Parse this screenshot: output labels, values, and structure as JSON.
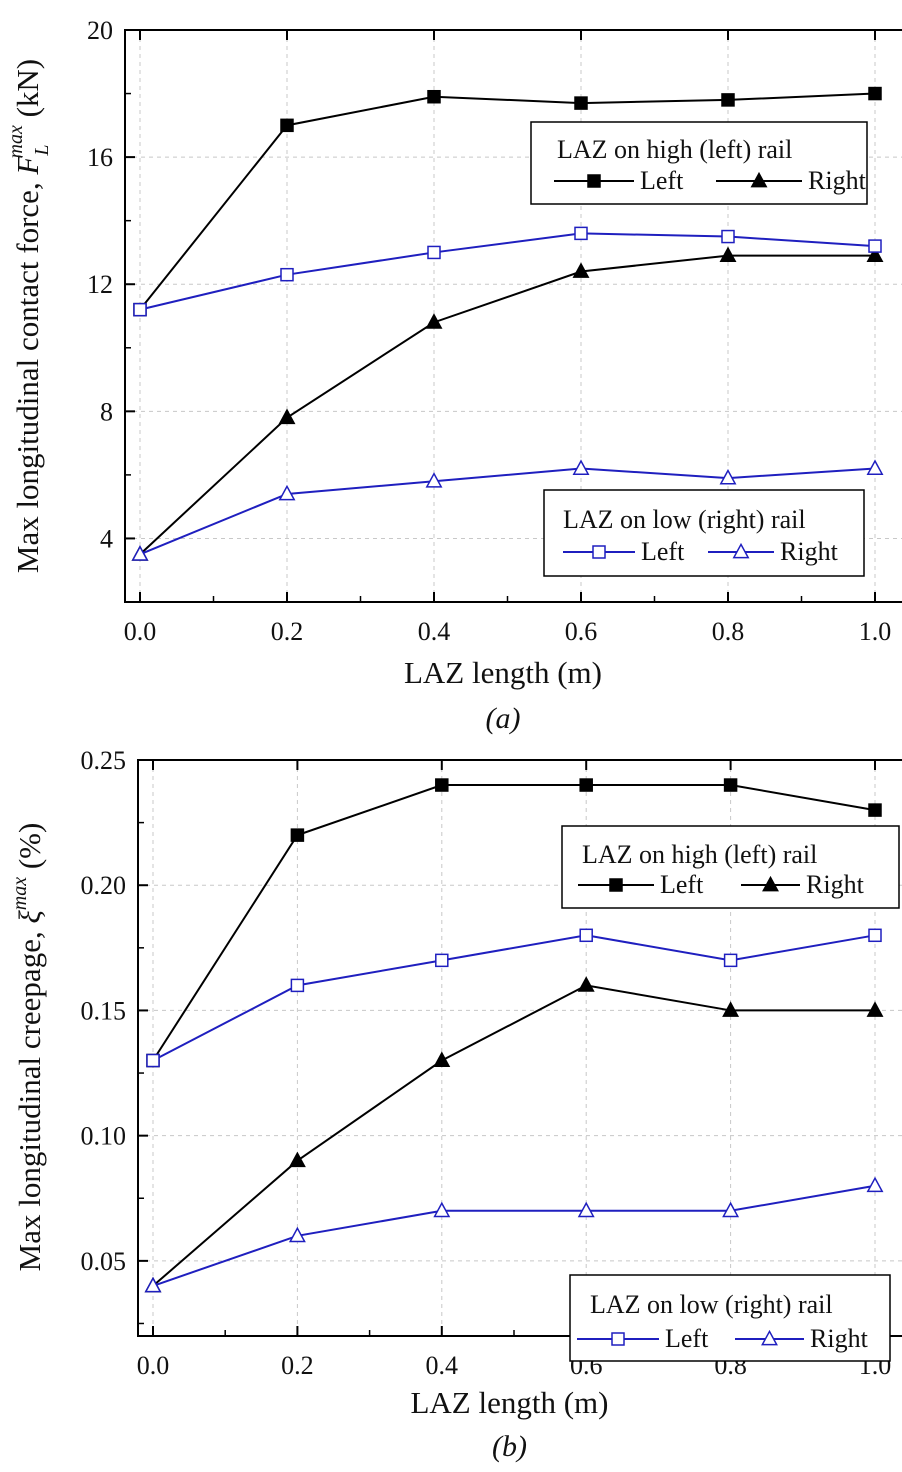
{
  "chart_data": [
    {
      "type": "line",
      "panel_label": "(a)",
      "xlabel": "LAZ length (m)",
      "ylabel": {
        "main": "Max longitudinal contact force, ",
        "symbol": "F",
        "sup": "max",
        "sub": "L",
        "unit": " (kN)"
      },
      "xlim": [
        0.0,
        1.0
      ],
      "ylim": [
        2,
        20
      ],
      "xticks": [
        "0.0",
        "0.2",
        "0.4",
        "0.6",
        "0.8",
        "1.0"
      ],
      "yticks": [
        "4",
        "8",
        "12",
        "16",
        "20"
      ],
      "x": [
        0.0,
        0.2,
        0.4,
        0.6,
        0.8,
        1.0
      ],
      "grid": true,
      "legends": [
        {
          "title": "LAZ on high (left) rail",
          "placement": "top-right",
          "entries": [
            {
              "label": "Left",
              "series": 0
            },
            {
              "label": "Right",
              "series": 1
            }
          ]
        },
        {
          "title": "LAZ on low (right) rail",
          "placement": "bottom-right",
          "entries": [
            {
              "label": "Left",
              "series": 2
            },
            {
              "label": "Right",
              "series": 3
            }
          ]
        }
      ],
      "series": [
        {
          "group": "LAZ on high (left) rail",
          "name": "Left",
          "color": "#000000",
          "marker": "square",
          "filled": true,
          "values": [
            11.2,
            17.0,
            17.9,
            17.7,
            17.8,
            18.0
          ]
        },
        {
          "group": "LAZ on high (left) rail",
          "name": "Right",
          "color": "#000000",
          "marker": "triangle",
          "filled": true,
          "values": [
            3.5,
            7.8,
            10.8,
            12.4,
            12.9,
            12.9
          ]
        },
        {
          "group": "LAZ on low (right) rail",
          "name": "Left",
          "color": "#1f1fbf",
          "marker": "square",
          "filled": false,
          "values": [
            11.2,
            12.3,
            13.0,
            13.6,
            13.5,
            13.2
          ]
        },
        {
          "group": "LAZ on low (right) rail",
          "name": "Right",
          "color": "#1f1fbf",
          "marker": "triangle",
          "filled": false,
          "values": [
            3.5,
            5.4,
            5.8,
            6.2,
            5.9,
            6.2
          ]
        }
      ]
    },
    {
      "type": "line",
      "panel_label": "(b)",
      "xlabel": "LAZ length (m)",
      "ylabel": {
        "main": "Max longitudinal creepage, ",
        "symbol": "ξ",
        "sup": "max",
        "sub": "",
        "unit": " (%)"
      },
      "xlim": [
        0.0,
        1.0
      ],
      "ylim": [
        0.02,
        0.25
      ],
      "xticks": [
        "0.0",
        "0.2",
        "0.4",
        "0.6",
        "0.8",
        "1.0"
      ],
      "yticks": [
        "0.05",
        "0.10",
        "0.15",
        "0.20",
        "0.25"
      ],
      "x": [
        0.0,
        0.2,
        0.4,
        0.6,
        0.8,
        1.0
      ],
      "grid": true,
      "legends": [
        {
          "title": "LAZ on high (left) rail",
          "placement": "top-right",
          "entries": [
            {
              "label": "Left",
              "series": 0
            },
            {
              "label": "Right",
              "series": 1
            }
          ]
        },
        {
          "title": "LAZ on low (right) rail",
          "placement": "bottom-right",
          "entries": [
            {
              "label": "Left",
              "series": 2
            },
            {
              "label": "Right",
              "series": 3
            }
          ]
        }
      ],
      "series": [
        {
          "group": "LAZ on high (left) rail",
          "name": "Left",
          "color": "#000000",
          "marker": "square",
          "filled": true,
          "values": [
            0.13,
            0.22,
            0.24,
            0.24,
            0.24,
            0.23
          ]
        },
        {
          "group": "LAZ on high (left) rail",
          "name": "Right",
          "color": "#000000",
          "marker": "triangle",
          "filled": true,
          "values": [
            0.04,
            0.09,
            0.13,
            0.16,
            0.15,
            0.15
          ]
        },
        {
          "group": "LAZ on low (right) rail",
          "name": "Left",
          "color": "#1f1fbf",
          "marker": "square",
          "filled": false,
          "values": [
            0.13,
            0.16,
            0.17,
            0.18,
            0.17,
            0.18
          ]
        },
        {
          "group": "LAZ on low (right) rail",
          "name": "Right",
          "color": "#1f1fbf",
          "marker": "triangle",
          "filled": false,
          "values": [
            0.04,
            0.06,
            0.07,
            0.07,
            0.07,
            0.08
          ]
        }
      ]
    }
  ]
}
